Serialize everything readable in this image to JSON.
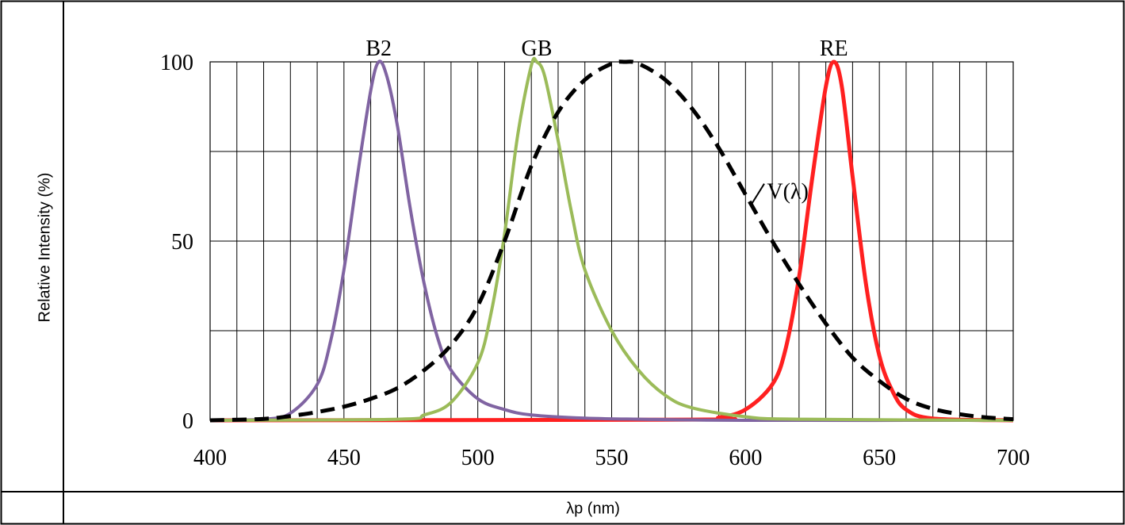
{
  "chart_data": {
    "type": "line",
    "title": "",
    "xlabel": "λp (nm)",
    "ylabel": "Relative Intensity (%)",
    "xlim": [
      400,
      700
    ],
    "ylim": [
      0,
      100
    ],
    "x_ticks": [
      "400",
      "450",
      "500",
      "550",
      "600",
      "650",
      "700"
    ],
    "y_ticks": [
      "0",
      "50",
      "100"
    ],
    "grid": true,
    "series": [
      {
        "name": "B2",
        "color": "#8064a2",
        "style": "solid",
        "x": [
          400,
          420,
          430,
          440,
          445,
          450,
          455,
          460,
          463,
          466,
          470,
          475,
          480,
          485,
          490,
          500,
          510,
          520,
          540,
          560,
          600,
          700
        ],
        "y": [
          0,
          0.3,
          2,
          10,
          22,
          42,
          68,
          92,
          100,
          96,
          82,
          58,
          38,
          23,
          14,
          6,
          3,
          1.5,
          0.6,
          0.3,
          0,
          0
        ]
      },
      {
        "name": "GB",
        "color": "#9bbb59",
        "style": "solid",
        "x": [
          400,
          470,
          480,
          490,
          500,
          505,
          510,
          515,
          520,
          522,
          525,
          530,
          535,
          540,
          550,
          560,
          570,
          580,
          600,
          620,
          700
        ],
        "y": [
          0,
          0.3,
          1.5,
          5,
          16,
          30,
          52,
          80,
          99,
          100,
          96,
          78,
          58,
          42,
          25,
          14,
          7,
          3.5,
          1,
          0.3,
          0
        ]
      },
      {
        "name": "RE",
        "color": "#ff2020",
        "style": "solid",
        "x": [
          400,
          580,
          590,
          600,
          610,
          615,
          620,
          625,
          630,
          633,
          636,
          640,
          645,
          650,
          655,
          660,
          670,
          700
        ],
        "y": [
          0,
          0.2,
          0.8,
          3,
          10,
          20,
          40,
          68,
          93,
          100,
          93,
          68,
          38,
          18,
          8,
          3,
          0.5,
          0
        ]
      },
      {
        "name": "V(λ)",
        "color": "#000000",
        "style": "dashed",
        "x": [
          400,
          420,
          430,
          440,
          450,
          460,
          470,
          480,
          490,
          500,
          510,
          520,
          530,
          540,
          550,
          555,
          560,
          570,
          580,
          590,
          600,
          610,
          620,
          630,
          640,
          650,
          660,
          670,
          680,
          690,
          700
        ],
        "y": [
          0,
          0.4,
          1.2,
          2.3,
          3.8,
          6,
          9,
          14,
          21,
          32,
          50,
          71,
          86,
          95,
          99.5,
          100,
          99.5,
          95,
          87,
          76,
          63,
          50,
          38,
          27,
          17.5,
          11,
          6,
          3.2,
          1.7,
          0.8,
          0.3
        ]
      }
    ]
  }
}
